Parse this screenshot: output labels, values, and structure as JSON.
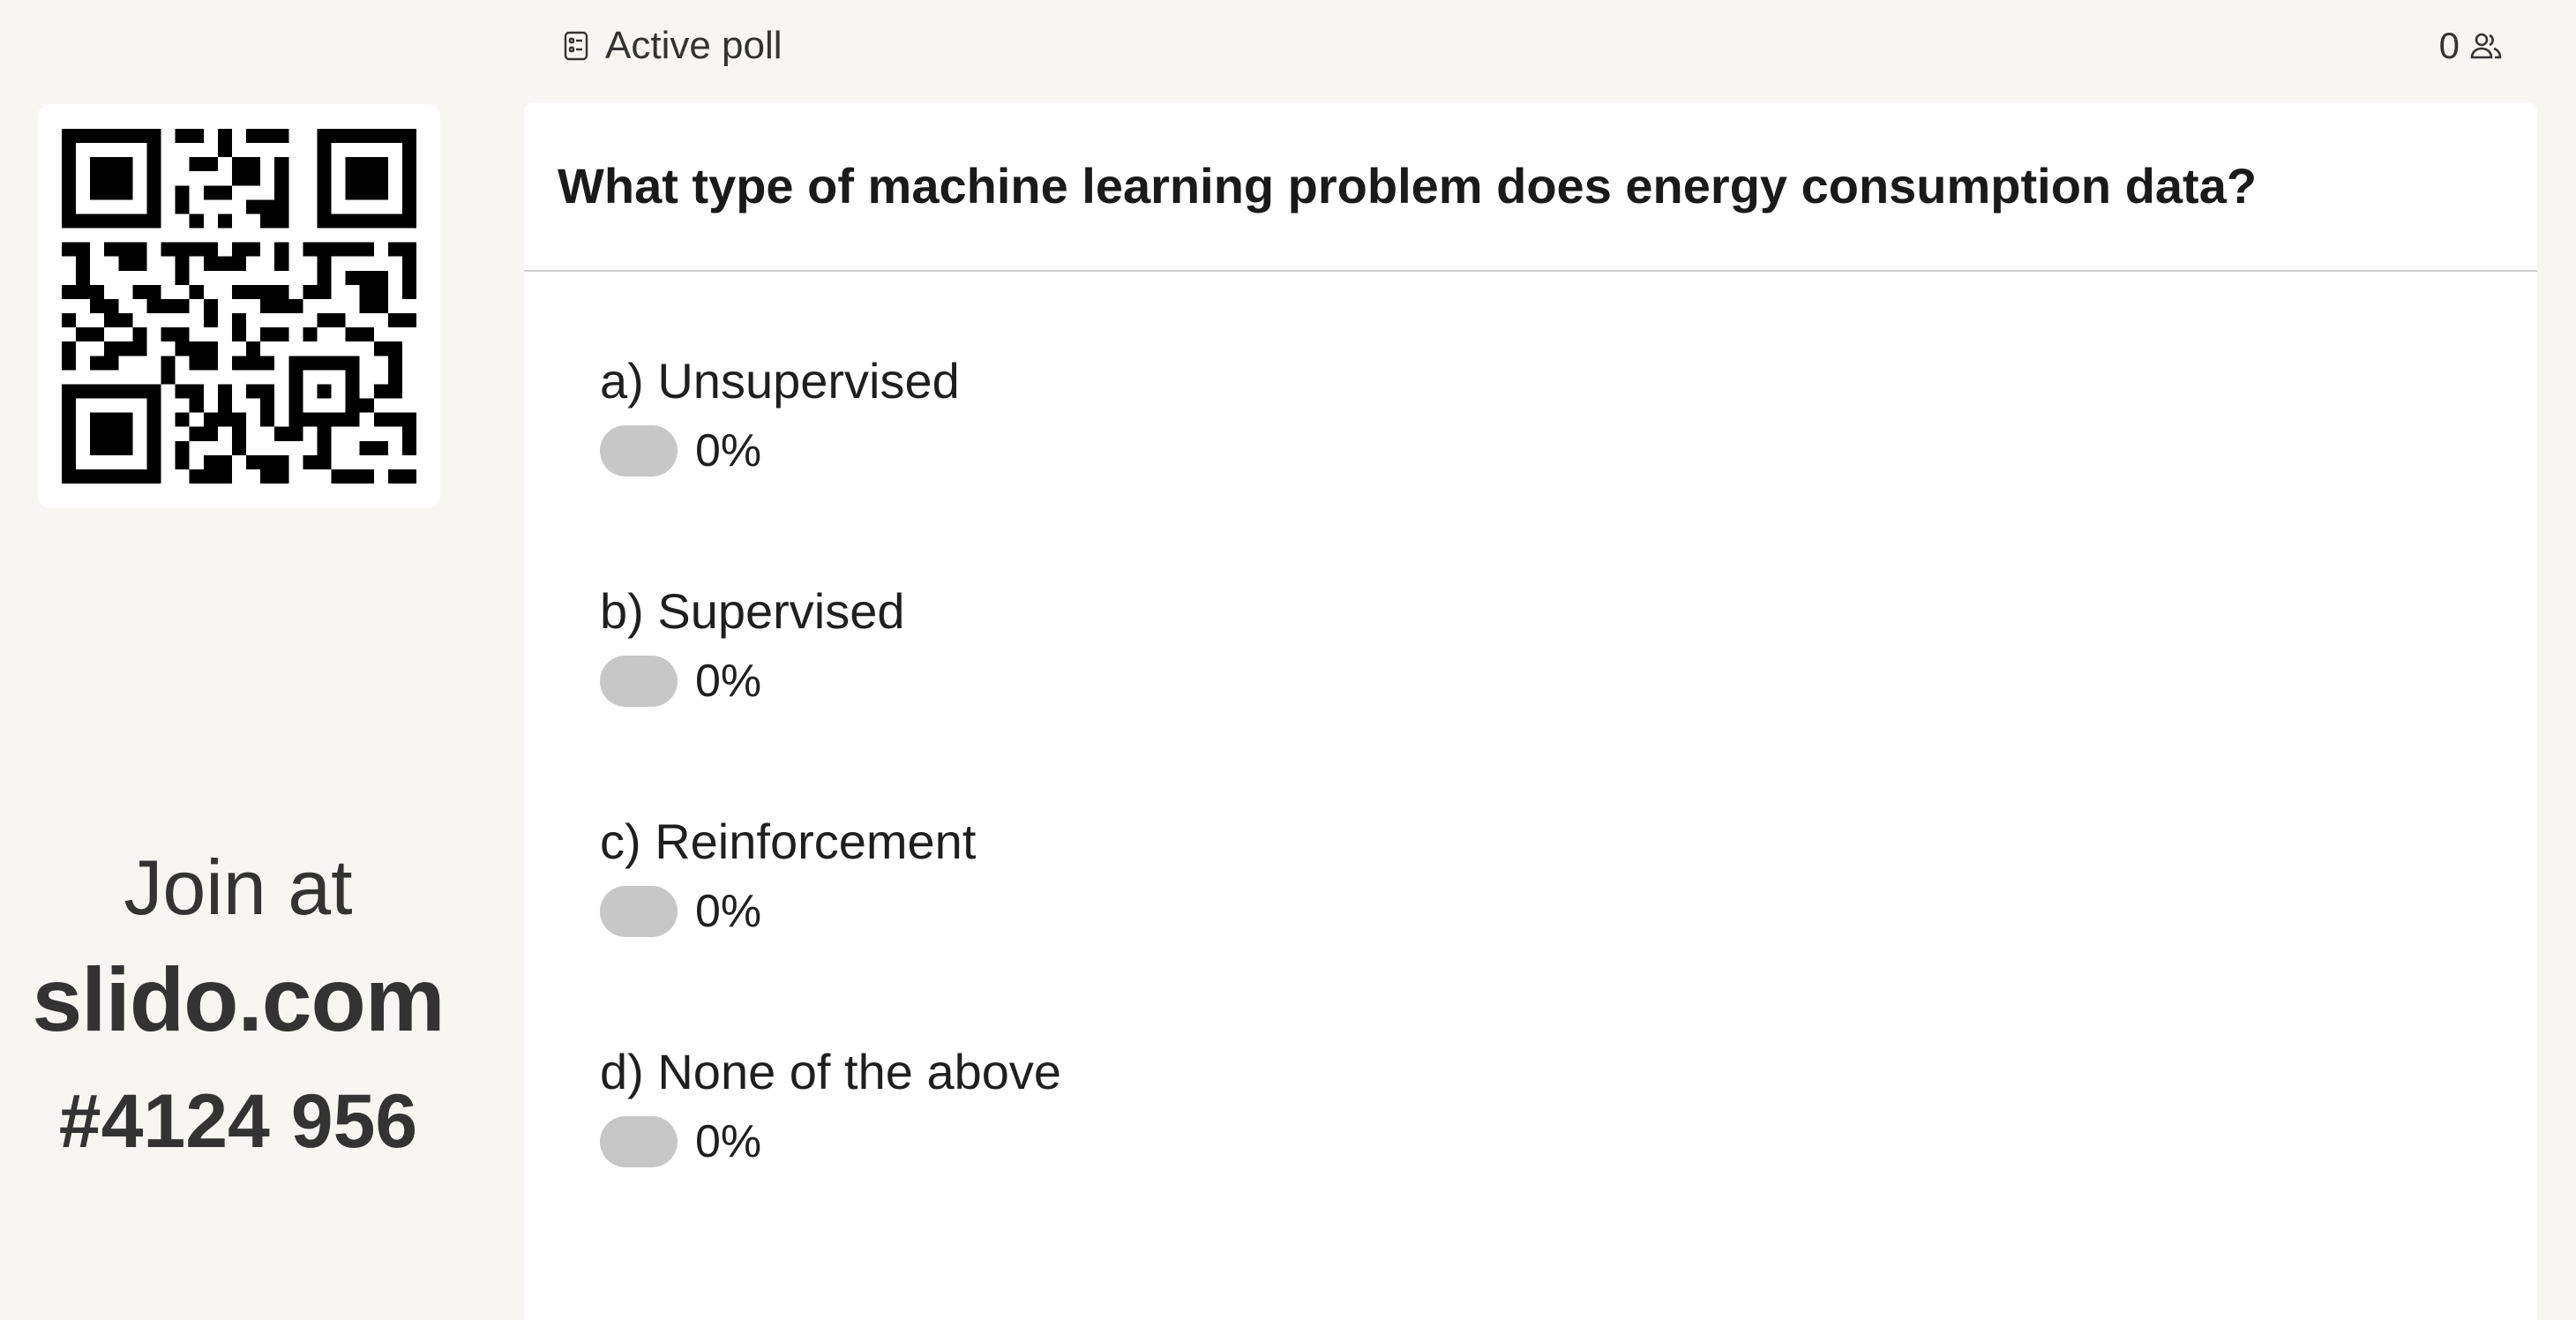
{
  "header": {
    "title": "Active poll",
    "participant_count": "0"
  },
  "join": {
    "label": "Join at",
    "url": "slido.com",
    "code": "#4124 956"
  },
  "poll": {
    "question": "What type of machine learning problem does energy consumption data?",
    "options": [
      {
        "label": "a) Unsupervised",
        "percent": "0%"
      },
      {
        "label": "b) Supervised",
        "percent": "0%"
      },
      {
        "label": "c) Reinforcement",
        "percent": "0%"
      },
      {
        "label": "d) None of the above",
        "percent": "0%"
      }
    ]
  },
  "colors": {
    "background": "#f7f6f2",
    "panel": "#ffffff",
    "bar": "#c7c7c7",
    "text": "#2b2b2b"
  }
}
